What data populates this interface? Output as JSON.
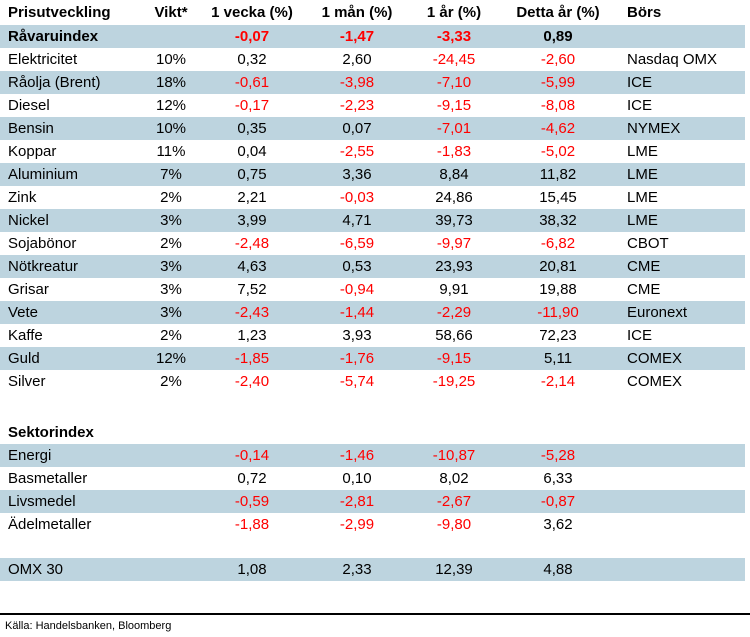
{
  "columns": [
    {
      "key": "name",
      "label": "Prisutveckling"
    },
    {
      "key": "vikt",
      "label": "Vikt*"
    },
    {
      "key": "week",
      "label": "1 vecka (%)"
    },
    {
      "key": "month",
      "label": "1 mån (%)"
    },
    {
      "key": "year",
      "label": "1 år (%)"
    },
    {
      "key": "ytd",
      "label": "Detta år (%)"
    },
    {
      "key": "bors",
      "label": "Börs"
    }
  ],
  "rows": [
    {
      "name": "Råvaruindex",
      "vikt": "",
      "week": "-0,07",
      "month": "-1,47",
      "year": "-3,33",
      "ytd": "0,89",
      "bors": "",
      "highlighted": true,
      "bold": true
    },
    {
      "name": "Elektricitet",
      "vikt": "10%",
      "week": "0,32",
      "month": "2,60",
      "year": "-24,45",
      "ytd": "-2,60",
      "bors": "Nasdaq OMX",
      "highlighted": false,
      "bold": false
    },
    {
      "name": "Råolja (Brent)",
      "vikt": "18%",
      "week": "-0,61",
      "month": "-3,98",
      "year": "-7,10",
      "ytd": "-5,99",
      "bors": "ICE",
      "highlighted": true,
      "bold": false
    },
    {
      "name": "Diesel",
      "vikt": "12%",
      "week": "-0,17",
      "month": "-2,23",
      "year": "-9,15",
      "ytd": "-8,08",
      "bors": "ICE",
      "highlighted": false,
      "bold": false
    },
    {
      "name": "Bensin",
      "vikt": "10%",
      "week": "0,35",
      "month": "0,07",
      "year": "-7,01",
      "ytd": "-4,62",
      "bors": "NYMEX",
      "highlighted": true,
      "bold": false
    },
    {
      "name": "Koppar",
      "vikt": "11%",
      "week": "0,04",
      "month": "-2,55",
      "year": "-1,83",
      "ytd": "-5,02",
      "bors": "LME",
      "highlighted": false,
      "bold": false
    },
    {
      "name": "Aluminium",
      "vikt": "7%",
      "week": "0,75",
      "month": "3,36",
      "year": "8,84",
      "ytd": "11,82",
      "bors": "LME",
      "highlighted": true,
      "bold": false
    },
    {
      "name": "Zink",
      "vikt": "2%",
      "week": "2,21",
      "month": "-0,03",
      "year": "24,86",
      "ytd": "15,45",
      "bors": "LME",
      "highlighted": false,
      "bold": false
    },
    {
      "name": "Nickel",
      "vikt": "3%",
      "week": "3,99",
      "month": "4,71",
      "year": "39,73",
      "ytd": "38,32",
      "bors": "LME",
      "highlighted": true,
      "bold": false
    },
    {
      "name": "Sojabönor",
      "vikt": "2%",
      "week": "-2,48",
      "month": "-6,59",
      "year": "-9,97",
      "ytd": "-6,82",
      "bors": "CBOT",
      "highlighted": false,
      "bold": false
    },
    {
      "name": "Nötkreatur",
      "vikt": "3%",
      "week": "4,63",
      "month": "0,53",
      "year": "23,93",
      "ytd": "20,81",
      "bors": "CME",
      "highlighted": true,
      "bold": false
    },
    {
      "name": "Grisar",
      "vikt": "3%",
      "week": "7,52",
      "month": "-0,94",
      "year": "9,91",
      "ytd": "19,88",
      "bors": "CME",
      "highlighted": false,
      "bold": false
    },
    {
      "name": "Vete",
      "vikt": "3%",
      "week": "-2,43",
      "month": "-1,44",
      "year": "-2,29",
      "ytd": "-11,90",
      "bors": "Euronext",
      "highlighted": true,
      "bold": false
    },
    {
      "name": "Kaffe",
      "vikt": "2%",
      "week": "1,23",
      "month": "3,93",
      "year": "58,66",
      "ytd": "72,23",
      "bors": "ICE",
      "highlighted": false,
      "bold": false
    },
    {
      "name": "Guld",
      "vikt": "12%",
      "week": "-1,85",
      "month": "-1,76",
      "year": "-9,15",
      "ytd": "5,11",
      "bors": "COMEX",
      "highlighted": true,
      "bold": false
    },
    {
      "name": "Silver",
      "vikt": "2%",
      "week": "-2,40",
      "month": "-5,74",
      "year": "-19,25",
      "ytd": "-2,14",
      "bors": "COMEX",
      "highlighted": false,
      "bold": false
    },
    {
      "spacer": true
    },
    {
      "name": "Sektorindex",
      "vikt": "",
      "week": "",
      "month": "",
      "year": "",
      "ytd": "",
      "bors": "",
      "highlighted": false,
      "bold": true
    },
    {
      "name": "Energi",
      "vikt": "",
      "week": "-0,14",
      "month": "-1,46",
      "year": "-10,87",
      "ytd": "-5,28",
      "bors": "",
      "highlighted": true,
      "bold": false
    },
    {
      "name": "Basmetaller",
      "vikt": "",
      "week": "0,72",
      "month": "0,10",
      "year": "8,02",
      "ytd": "6,33",
      "bors": "",
      "highlighted": false,
      "bold": false
    },
    {
      "name": "Livsmedel",
      "vikt": "",
      "week": "-0,59",
      "month": "-2,81",
      "year": "-2,67",
      "ytd": "-0,87",
      "bors": "",
      "highlighted": true,
      "bold": false
    },
    {
      "name": "Ädelmetaller",
      "vikt": "",
      "week": "-1,88",
      "month": "-2,99",
      "year": "-9,80",
      "ytd": "3,62",
      "bors": "",
      "highlighted": false,
      "bold": false
    },
    {
      "spacer": true
    },
    {
      "name": "OMX 30",
      "vikt": "",
      "week": "1,08",
      "month": "2,33",
      "year": "12,39",
      "ytd": "4,88",
      "bors": "",
      "highlighted": true,
      "bold": false
    }
  ],
  "footer": {
    "source": "Källa: Handelsbanken, Bloomberg"
  },
  "colors": {
    "highlight_row": "#BDD4DF",
    "negative_value": "#FF0000",
    "positive_value": "#000000"
  }
}
